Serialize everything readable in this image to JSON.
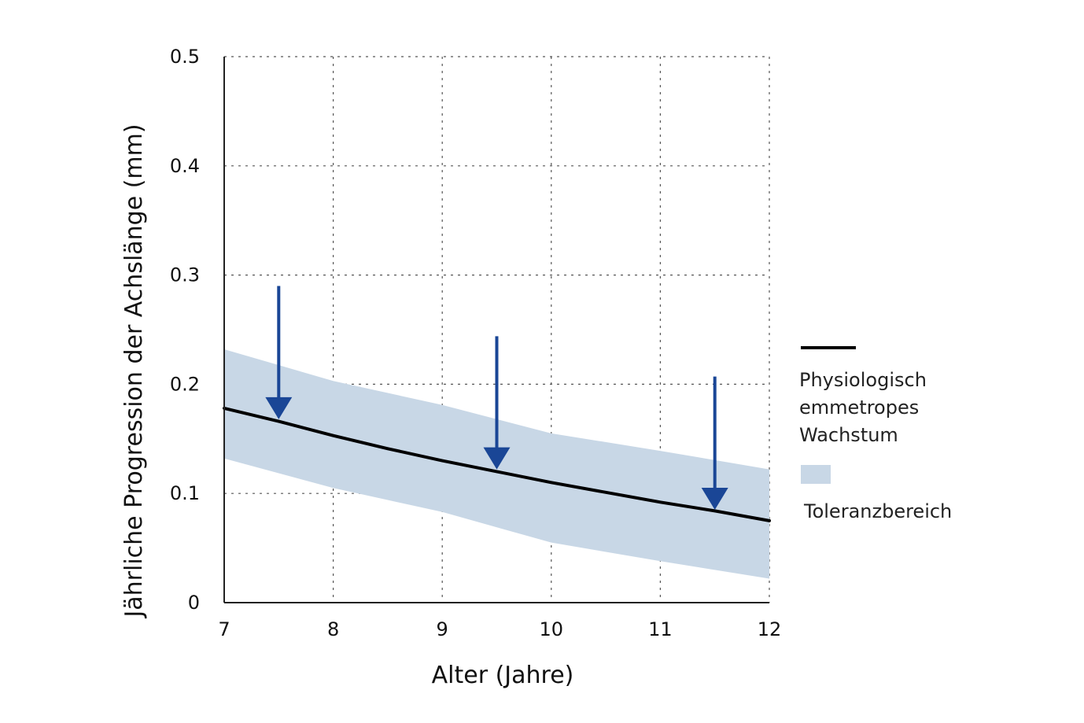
{
  "chart_data": {
    "type": "line",
    "xlabel": "Alter (Jahre)",
    "ylabel": "Jährliche Progression der Achslänge (mm)",
    "xlim": [
      7,
      12
    ],
    "ylim": [
      0,
      0.5
    ],
    "x_ticks": [
      "7",
      "8",
      "9",
      "10",
      "11",
      "12"
    ],
    "y_ticks": [
      "0",
      "0.1",
      "0.2",
      "0.3",
      "0.4",
      "0.5"
    ],
    "grid": "dotted",
    "series": [
      {
        "name": "Physiologisch emmetropes Wachstum",
        "x": [
          7,
          7.5,
          8,
          8.5,
          9,
          9.5,
          10,
          10.5,
          11,
          11.5,
          12
        ],
        "y": [
          0.178,
          0.166,
          0.153,
          0.141,
          0.13,
          0.12,
          0.11,
          0.101,
          0.092,
          0.084,
          0.075
        ]
      }
    ],
    "band": {
      "name": "Toleranzbereich",
      "x": [
        7,
        8,
        9,
        10,
        11,
        12
      ],
      "upper": [
        0.232,
        0.203,
        0.181,
        0.155,
        0.139,
        0.122
      ],
      "lower": [
        0.132,
        0.105,
        0.083,
        0.055,
        0.038,
        0.022
      ]
    },
    "arrows": [
      {
        "x": 7.5,
        "y_from": 0.29,
        "y_to": 0.168
      },
      {
        "x": 9.5,
        "y_from": 0.244,
        "y_to": 0.122
      },
      {
        "x": 11.5,
        "y_from": 0.207,
        "y_to": 0.085
      }
    ],
    "colors": {
      "line": "#000000",
      "band": "#c8d7e6",
      "arrow": "#1a4696",
      "grid": "#555555"
    }
  },
  "legend": {
    "line_label": "Physiologisch\nemmetropes\nWachstum",
    "band_label": "Toleranzbereich"
  }
}
